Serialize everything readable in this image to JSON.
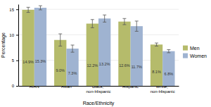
{
  "chart_data": {
    "type": "bar",
    "categories": [
      "AIAN",
      "Asian",
      "Black, non-Hispanic",
      "Hispanic",
      "White, non-Hispanic"
    ],
    "series": [
      {
        "name": "Men",
        "color": "#b5bb6b",
        "values": [
          14.9,
          9.0,
          12.2,
          12.6,
          8.1
        ],
        "errors": [
          0.5,
          1.2,
          0.8,
          0.6,
          0.3
        ],
        "value_labels": [
          "14.9%",
          "9.0%",
          "12.2%",
          "12.6%",
          "8.1%"
        ]
      },
      {
        "name": "Women",
        "color": "#9fb3d1",
        "values": [
          15.3,
          7.3,
          13.2,
          11.7,
          6.8
        ],
        "errors": [
          0.4,
          0.7,
          0.7,
          1.0,
          0.3
        ],
        "value_labels": [
          "15.3%",
          "7.3%",
          "13.2%",
          "11.7%",
          "6.8%"
        ]
      }
    ],
    "xlabel": "Race/Ethnicity",
    "ylabel": "Percentage",
    "ylim": [
      0,
      16
    ],
    "yticks": [
      0,
      5,
      10,
      15
    ],
    "grid": true,
    "legend": "right",
    "data_labels": true
  }
}
